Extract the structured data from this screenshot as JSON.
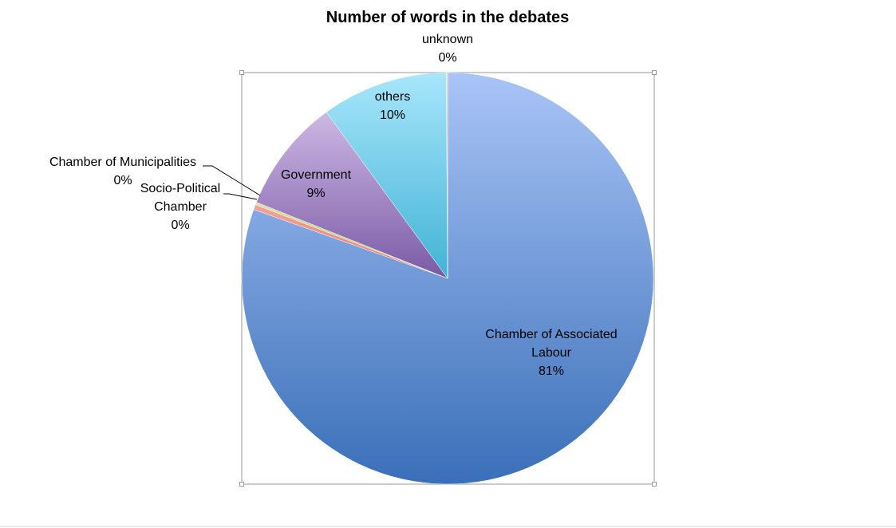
{
  "chart_data": {
    "type": "pie",
    "title": "Number of words in the debates",
    "slices": [
      {
        "label": "Chamber of Associated Labour",
        "value": 81,
        "value_label": "81%"
      },
      {
        "label": "Socio-Political Chamber",
        "value": 0.4,
        "value_label": "0%"
      },
      {
        "label": "Chamber of Municipalities",
        "value": 0.2,
        "value_label": "0%"
      },
      {
        "label": "Government",
        "value": 9,
        "value_label": "9%"
      },
      {
        "label": "others",
        "value": 10,
        "value_label": "10%"
      },
      {
        "label": "unknown",
        "value": 0.1,
        "value_label": "0%"
      }
    ],
    "legend": "none"
  },
  "colors": {
    "Chamber of Associated Labour": [
      "#a9c4f7",
      "#3a6fb8"
    ],
    "Socio-Political Chamber": [
      "#f2a39a",
      "#e07a6e"
    ],
    "Chamber of Municipalities": [
      "#d6e4a0",
      "#a8c060"
    ],
    "Government": [
      "#cdb8e4",
      "#7a5aa6"
    ],
    "others": [
      "#a8e6fb",
      "#41b3d6"
    ],
    "unknown": [
      "#f7c98a",
      "#e09a40"
    ]
  }
}
